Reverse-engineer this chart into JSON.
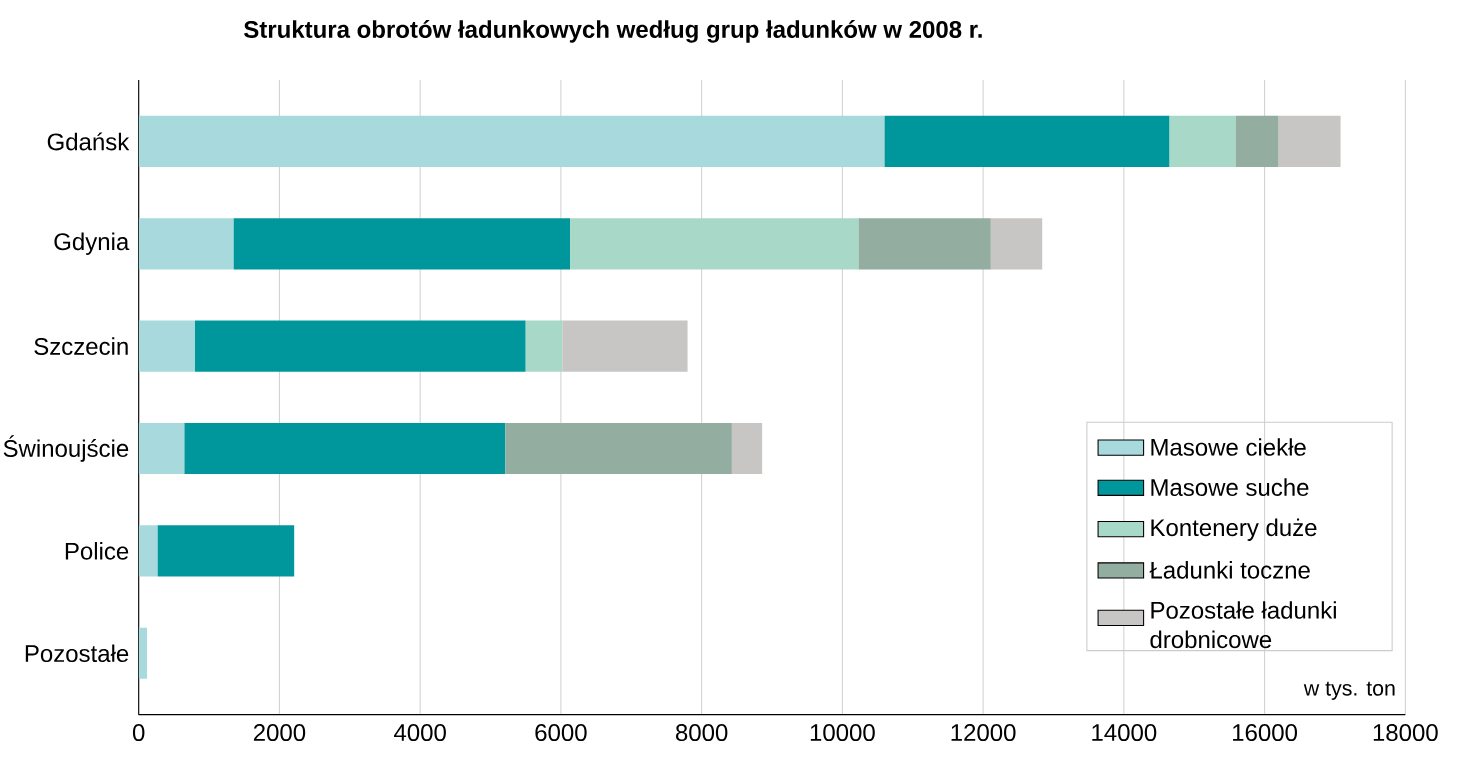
{
  "chart_data": {
    "type": "bar",
    "orientation": "horizontal",
    "stacked": true,
    "title": "Struktura obrotów ładunkowych według grup ładunków w 2008 r.",
    "xlabel": "w tys. ton",
    "categories": [
      "Gdańsk",
      "Gdynia",
      "Szczecin",
      "Świnoujście",
      "Police",
      "Pozostałe"
    ],
    "series": [
      {
        "name": "Masowe ciekłe",
        "color": "#a8dadd",
        "values": [
          10600,
          1350,
          800,
          650,
          270,
          120
        ]
      },
      {
        "name": "Masowe suche",
        "color": "#00979c",
        "values": [
          4050,
          4780,
          4700,
          4560,
          1940,
          0
        ]
      },
      {
        "name": "Kontenery duże",
        "color": "#a8d8c8",
        "values": [
          940,
          4100,
          520,
          0,
          0,
          0
        ]
      },
      {
        "name": "Ładunki toczne",
        "color": "#93ada0",
        "values": [
          610,
          1880,
          0,
          3220,
          0,
          0
        ]
      },
      {
        "name": "Pozostałe ładunki drobnicowe",
        "color": "#c8c6c4",
        "values": [
          880,
          730,
          1780,
          430,
          0,
          0
        ]
      }
    ],
    "xlim": [
      0,
      18000
    ],
    "xticks": [
      0,
      2000,
      4000,
      6000,
      8000,
      10000,
      12000,
      14000,
      16000,
      18000
    ],
    "grid": "x",
    "legend": "right"
  }
}
